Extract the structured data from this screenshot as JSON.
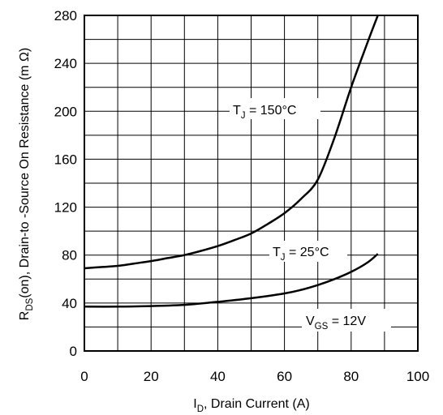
{
  "chart_data": {
    "type": "line",
    "xlabel_main": "I",
    "xlabel_sub": "D",
    "xlabel_rest": ", Drain Current (A)",
    "ylabel_main": "R",
    "ylabel_sub": "DS",
    "ylabel_rest": "(on),  Drain-to -Source On Resistance (m Ω)",
    "xlim": [
      0,
      100
    ],
    "ylim": [
      0,
      280
    ],
    "x_ticks": [
      "0",
      "20",
      "40",
      "60",
      "80",
      "100"
    ],
    "y_ticks": [
      "0",
      "40",
      "80",
      "120",
      "160",
      "200",
      "240",
      "280"
    ],
    "grid": true,
    "series": [
      {
        "name": "T_J = 150°C",
        "x": [
          0,
          5,
          10,
          15,
          20,
          25,
          30,
          35,
          40,
          45,
          50,
          55,
          60,
          65,
          70,
          75,
          80,
          85,
          88
        ],
        "y": [
          69,
          70,
          71,
          73,
          75,
          77.5,
          80,
          83.5,
          87.5,
          92.5,
          98,
          106,
          115,
          127,
          143,
          178,
          220,
          258,
          280
        ]
      },
      {
        "name": "T_J = 25°C",
        "x": [
          0,
          10,
          20,
          30,
          40,
          50,
          60,
          65,
          70,
          75,
          80,
          85,
          88
        ],
        "y": [
          37,
          37,
          37.5,
          38.5,
          41,
          44,
          48,
          51,
          55,
          60,
          66,
          74,
          81
        ]
      }
    ],
    "annotations": [
      {
        "main": "T",
        "sub": "J",
        "rest": " = 150°C"
      },
      {
        "main": "T",
        "sub": "J",
        "rest": " = 25°C"
      },
      {
        "main": "V",
        "sub": "GS",
        "rest": " = 12V"
      }
    ]
  }
}
